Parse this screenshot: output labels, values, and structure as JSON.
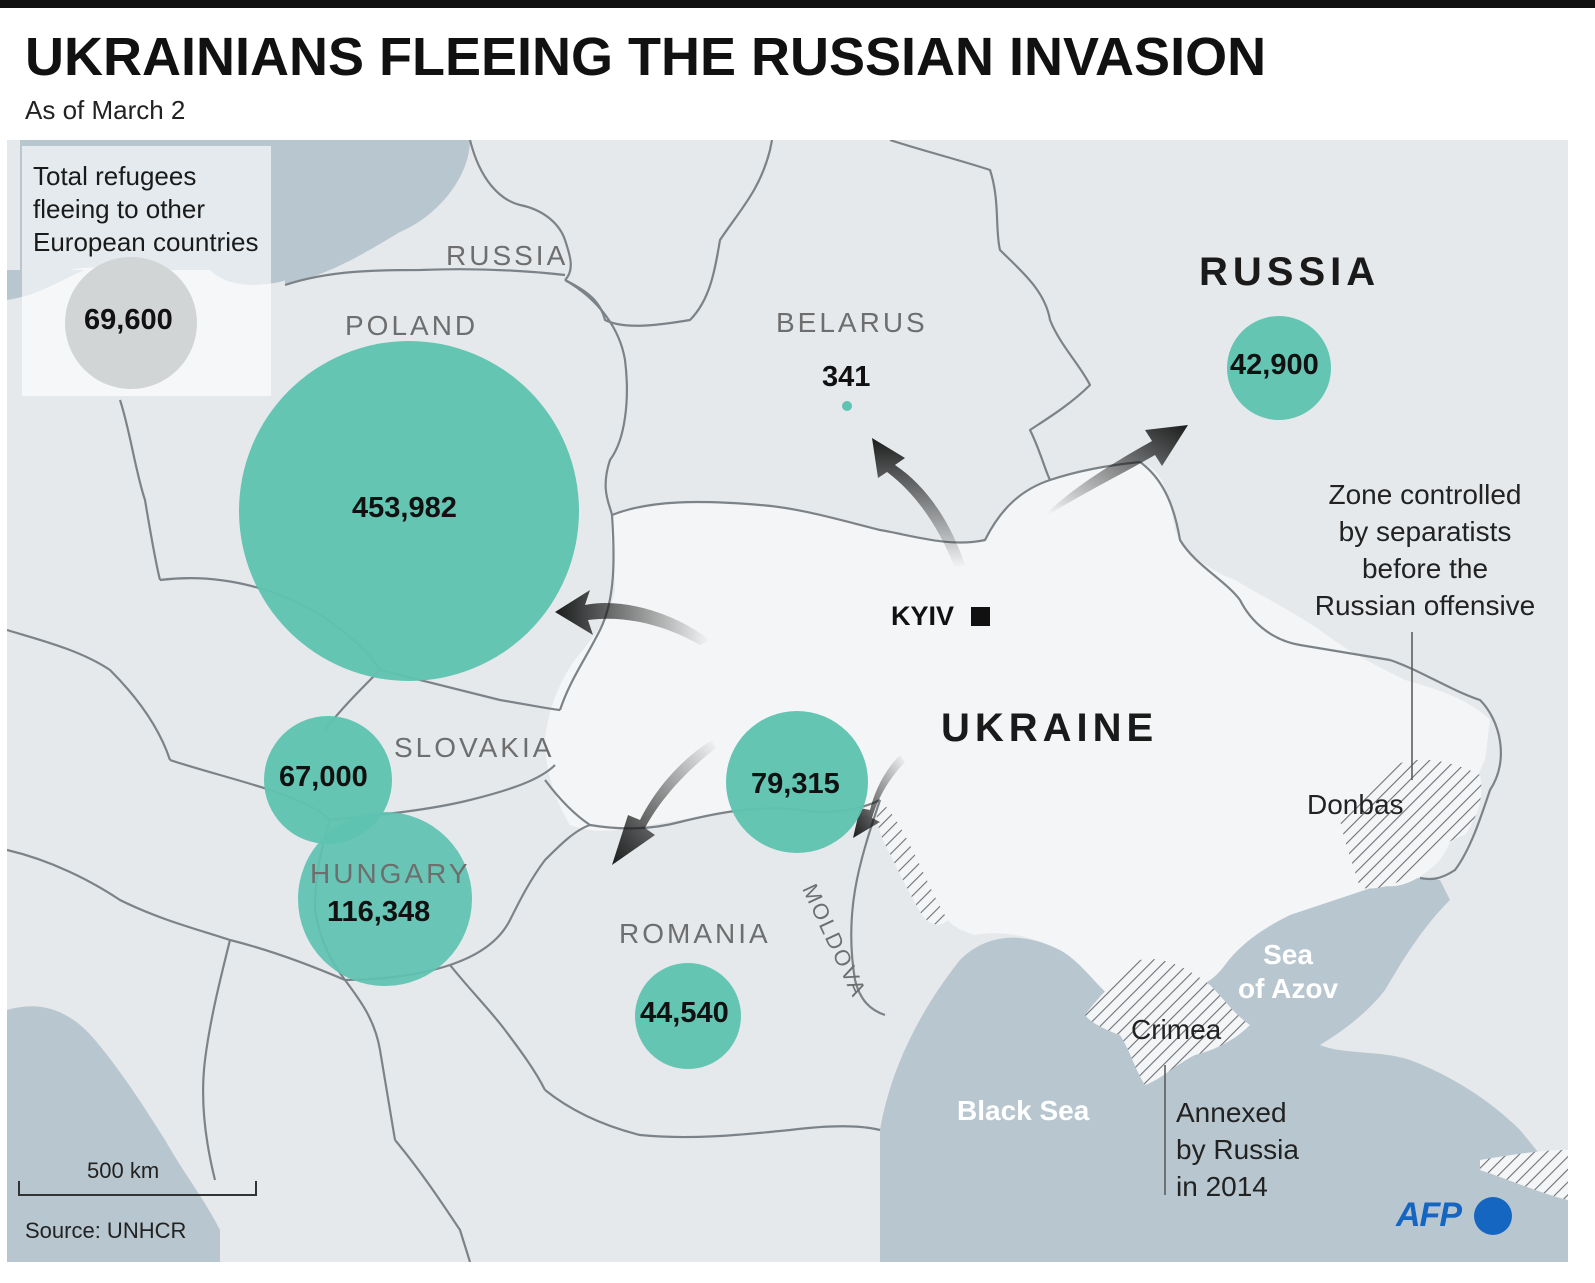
{
  "header": {
    "title": "UKRAINIANS FLEEING THE RUSSIAN INVASION",
    "subtitle": "As of March 2"
  },
  "legend": {
    "lines": [
      "Total refugees",
      "fleeing to other",
      "European countries"
    ],
    "value": "69,600"
  },
  "countries": {
    "russia_small": "RUSSIA",
    "poland": "POLAND",
    "belarus": "BELARUS",
    "russia_big": "RUSSIA",
    "slovakia": "SLOVAKIA",
    "hungary": "HUNGARY",
    "romania": "ROMANIA",
    "moldova": "MOLDOVA",
    "ukraine": "UKRAINE"
  },
  "refugees": {
    "poland": "453,982",
    "belarus": "341",
    "russia": "42,900",
    "slovakia": "67,000",
    "hungary": "116,348",
    "moldova": "79,315",
    "romania": "44,540"
  },
  "places": {
    "kyiv": "KYIV",
    "donbas": "Donbas",
    "crimea": "Crimea",
    "black_sea": "Black Sea",
    "sea_of_azov": [
      "Sea",
      "of Azov"
    ]
  },
  "notes": {
    "separatists": [
      "Zone controlled",
      "by separatists",
      "before the",
      "Russian offensive"
    ],
    "annexed": [
      "Annexed",
      "by Russia",
      "in 2014"
    ]
  },
  "scale": "500 km",
  "source": "Source: UNHCR",
  "brand": "AFP",
  "colors": {
    "bubble": "#5fc3b1",
    "legend_bubble": "#8a9094",
    "land": "#e6e9ec",
    "ukraine": "#f4f5f6",
    "sea": "#b8c7cf",
    "border": "#7c8388",
    "brand": "#1566c0"
  }
}
